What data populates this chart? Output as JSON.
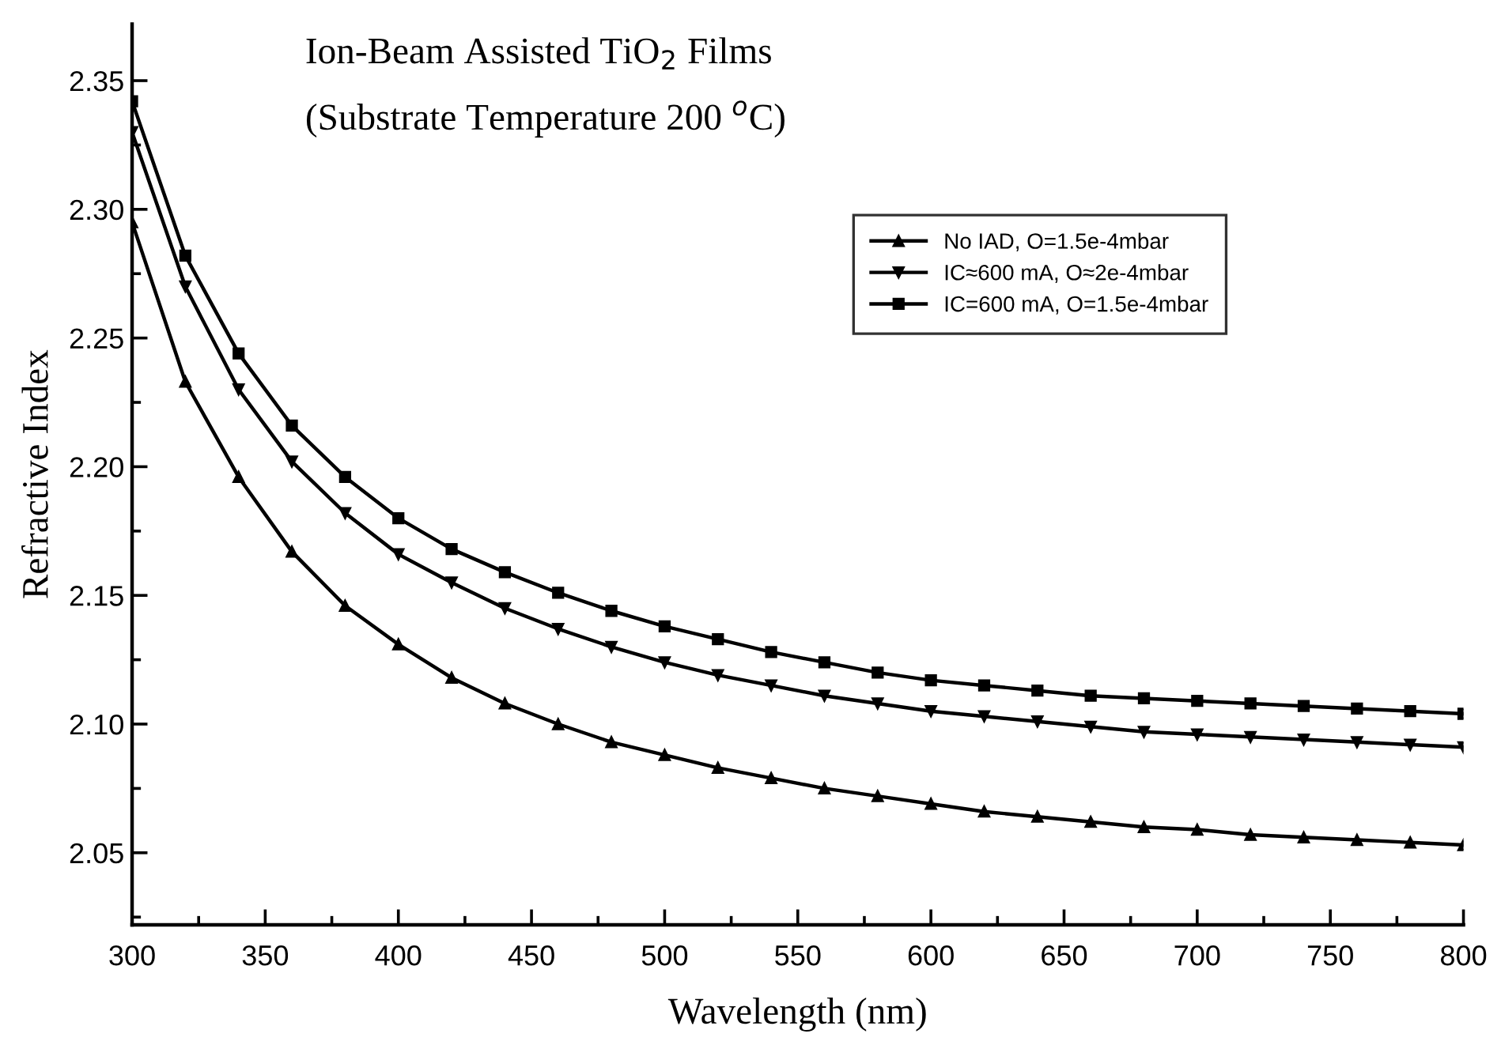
{
  "chart_data": {
    "type": "line",
    "title": "Ion-Beam Assisted TiO$_{2}$ Films",
    "subtitle": "(Substrate Temperature 200 $^{o}$C)",
    "xlabel": "Wavelength (nm)",
    "ylabel": "Refractive Index",
    "x": [
      300,
      320,
      340,
      360,
      380,
      400,
      420,
      440,
      460,
      480,
      500,
      520,
      540,
      560,
      580,
      600,
      620,
      640,
      660,
      680,
      700,
      720,
      740,
      760,
      780,
      800
    ],
    "series": [
      {
        "name": "No IAD, O=1.5e-4mbar",
        "color": "#000000",
        "marker": "triangle",
        "values": [
          2.295,
          2.233,
          2.196,
          2.167,
          2.146,
          2.131,
          2.118,
          2.108,
          2.1,
          2.093,
          2.088,
          2.083,
          2.079,
          2.075,
          2.072,
          2.069,
          2.066,
          2.064,
          2.062,
          2.06,
          2.059,
          2.057,
          2.056,
          2.055,
          2.054,
          2.053
        ]
      },
      {
        "name": "IC≈600 mA, O≈2e-4mbar",
        "color": "#000000",
        "marker": "triangle_down",
        "values": [
          2.33,
          2.27,
          2.23,
          2.202,
          2.182,
          2.166,
          2.155,
          2.145,
          2.137,
          2.13,
          2.124,
          2.119,
          2.115,
          2.111,
          2.108,
          2.105,
          2.103,
          2.101,
          2.099,
          2.097,
          2.096,
          2.095,
          2.094,
          2.093,
          2.092,
          2.091
        ]
      },
      {
        "name": "IC=600 mA, O=1.5e-4mbar",
        "color": "#000000",
        "marker": "square",
        "values": [
          2.342,
          2.282,
          2.244,
          2.216,
          2.196,
          2.18,
          2.168,
          2.159,
          2.151,
          2.144,
          2.138,
          2.133,
          2.128,
          2.124,
          2.12,
          2.117,
          2.115,
          2.113,
          2.111,
          2.11,
          2.109,
          2.108,
          2.107,
          2.106,
          2.105,
          2.104
        ]
      }
    ],
    "xlim": [
      300,
      800
    ],
    "xticks": [
      300,
      350,
      400,
      450,
      500,
      550,
      600,
      650,
      700,
      750,
      800
    ],
    "ylim": [
      2.022,
      2.372
    ],
    "yticks": [
      {
        "value": 2.05,
        "label": "2.05"
      },
      {
        "value": 2.1,
        "label": "2.10"
      },
      {
        "value": 2.15,
        "label": "2.15"
      },
      {
        "value": 2.2,
        "label": "2.20"
      },
      {
        "value": 2.25,
        "label": "2.25"
      },
      {
        "value": 2.3,
        "label": "2.30"
      },
      {
        "value": 2.35,
        "label": "2.35"
      }
    ],
    "grid": false,
    "legend": "top right",
    "line_style": "solid"
  }
}
